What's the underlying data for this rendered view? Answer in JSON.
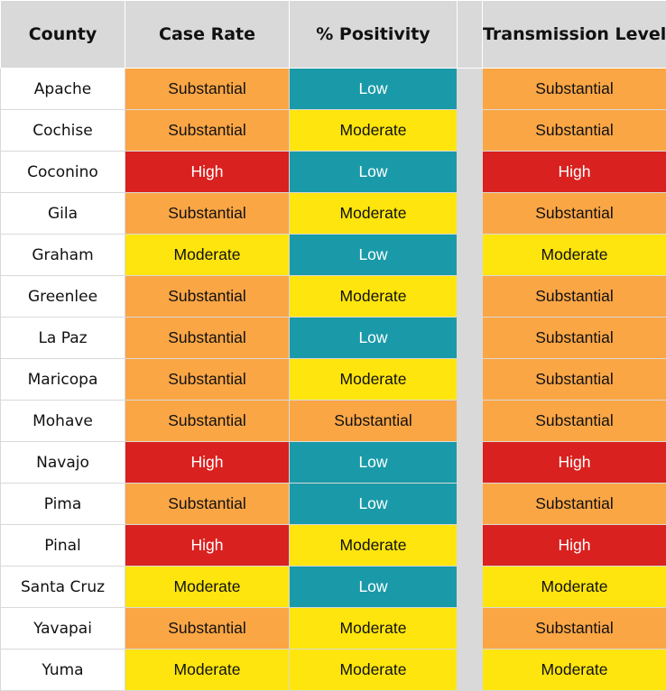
{
  "chart_data": {
    "type": "table",
    "columns": [
      "County",
      "Case Rate",
      "% Positivity",
      "",
      "Transmission Level"
    ],
    "rows": [
      {
        "county": "Apache",
        "case_rate": "Substantial",
        "positivity": "Low",
        "transmission": "Substantial"
      },
      {
        "county": "Cochise",
        "case_rate": "Substantial",
        "positivity": "Moderate",
        "transmission": "Substantial"
      },
      {
        "county": "Coconino",
        "case_rate": "High",
        "positivity": "Low",
        "transmission": "High"
      },
      {
        "county": "Gila",
        "case_rate": "Substantial",
        "positivity": "Moderate",
        "transmission": "Substantial"
      },
      {
        "county": "Graham",
        "case_rate": "Moderate",
        "positivity": "Low",
        "transmission": "Moderate"
      },
      {
        "county": "Greenlee",
        "case_rate": "Substantial",
        "positivity": "Moderate",
        "transmission": "Substantial"
      },
      {
        "county": "La Paz",
        "case_rate": "Substantial",
        "positivity": "Low",
        "transmission": "Substantial"
      },
      {
        "county": "Maricopa",
        "case_rate": "Substantial",
        "positivity": "Moderate",
        "transmission": "Substantial"
      },
      {
        "county": "Mohave",
        "case_rate": "Substantial",
        "positivity": "Substantial",
        "transmission": "Substantial"
      },
      {
        "county": "Navajo",
        "case_rate": "High",
        "positivity": "Low",
        "transmission": "High"
      },
      {
        "county": "Pima",
        "case_rate": "Substantial",
        "positivity": "Low",
        "transmission": "Substantial"
      },
      {
        "county": "Pinal",
        "case_rate": "High",
        "positivity": "Moderate",
        "transmission": "High"
      },
      {
        "county": "Santa Cruz",
        "case_rate": "Moderate",
        "positivity": "Low",
        "transmission": "Moderate"
      },
      {
        "county": "Yavapai",
        "case_rate": "Substantial",
        "positivity": "Moderate",
        "transmission": "Substantial"
      },
      {
        "county": "Yuma",
        "case_rate": "Moderate",
        "positivity": "Moderate",
        "transmission": "Moderate"
      }
    ]
  },
  "colors": {
    "High": "#d9211f",
    "Substantial": "#fba645",
    "Moderate": "#fde50d",
    "Low": "#1a9aa8",
    "header_bg": "#d9d9d9"
  }
}
